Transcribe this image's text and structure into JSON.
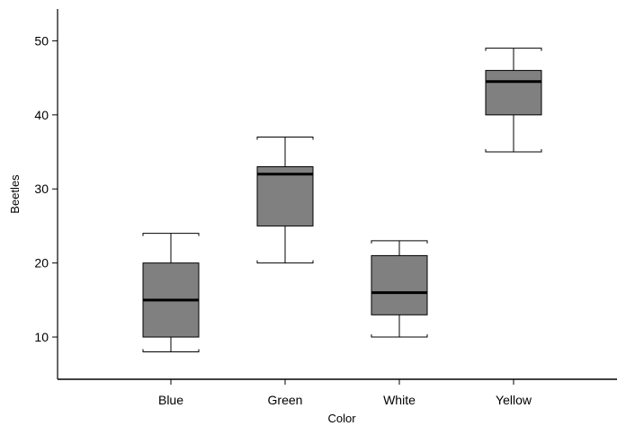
{
  "chart_data": {
    "type": "box",
    "title": "",
    "xlabel": "Color",
    "ylabel": "Beetles",
    "categories": [
      "Blue",
      "Green",
      "White",
      "Yellow"
    ],
    "boxes": [
      {
        "category": "Blue",
        "whisker_low": 8,
        "q1": 10,
        "median": 15,
        "q3": 20,
        "whisker_high": 24
      },
      {
        "category": "Green",
        "whisker_low": 20,
        "q1": 25,
        "median": 32,
        "q3": 33,
        "whisker_high": 37
      },
      {
        "category": "White",
        "whisker_low": 10,
        "q1": 13,
        "median": 16,
        "q3": 21,
        "whisker_high": 23
      },
      {
        "category": "Yellow",
        "whisker_low": 35,
        "q1": 40,
        "median": 44.5,
        "q3": 46,
        "whisker_high": 49
      }
    ],
    "y_ticks": [
      10,
      20,
      30,
      40,
      50
    ],
    "ylim": [
      4.3,
      54.3
    ],
    "grid": false,
    "box_color": "#808080",
    "line_color": "#000000"
  }
}
